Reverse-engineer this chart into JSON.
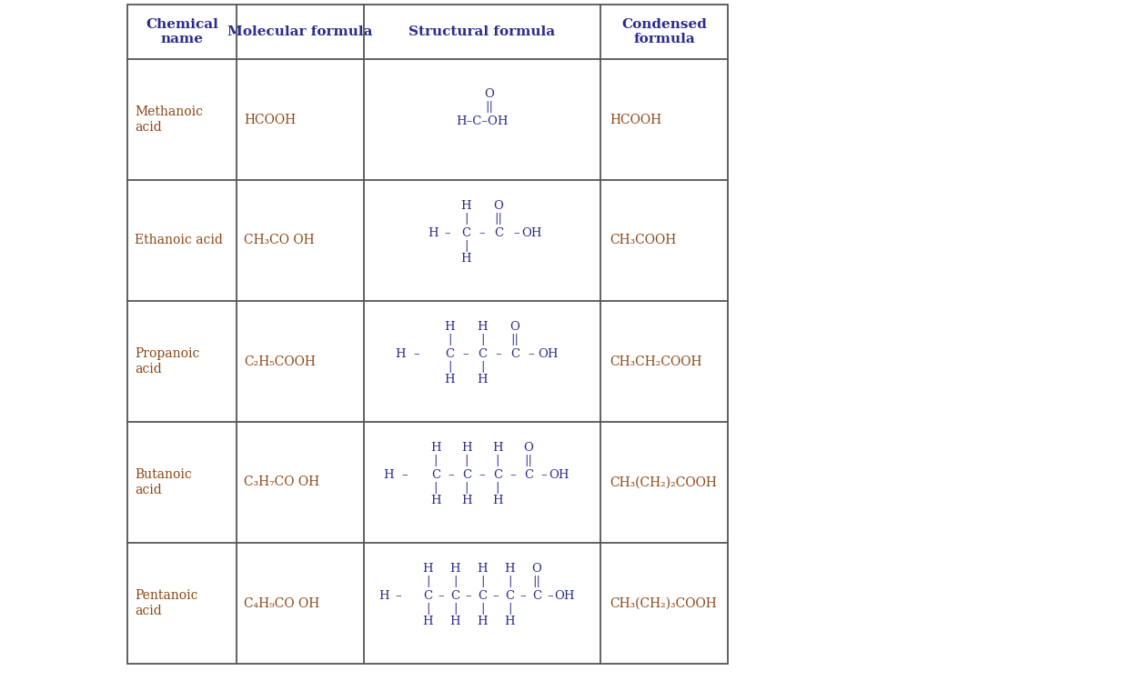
{
  "background": "#ffffff",
  "header_text_color": "#2c2c8c",
  "cell_text_color": "#8B4513",
  "bond_color": "#2c2c8c",
  "line_color": "#555555",
  "headers": [
    "Chemical\nname",
    "Molecular formula",
    "Structural formula",
    "Condensed\nformula"
  ],
  "rows": [
    {
      "name": "Methanoic\nacid",
      "molecular": "HCOOH",
      "condensed": "HCOOH",
      "struct_type": "methanoic"
    },
    {
      "name": "Ethanoic acid",
      "molecular": "CH₃CO OH",
      "condensed": "CH₃COOH",
      "struct_type": "ethanoic"
    },
    {
      "name": "Propanoic\nacid",
      "molecular": "C₂H₅COOH",
      "condensed": "CH₃CH₂COOH",
      "struct_type": "propanoic"
    },
    {
      "name": "Butanoic\nacid",
      "molecular": "C₃H₇CO OH",
      "condensed": "CH₃(CH₂)₂COOH",
      "struct_type": "butanoic"
    },
    {
      "name": "Pentanoic\nacid",
      "molecular": "C₄H₉CO OH",
      "condensed": "CH₃(CH₂)₃COOH",
      "struct_type": "pentanoic"
    }
  ],
  "fig_width": 12.41,
  "fig_height": 7.49
}
